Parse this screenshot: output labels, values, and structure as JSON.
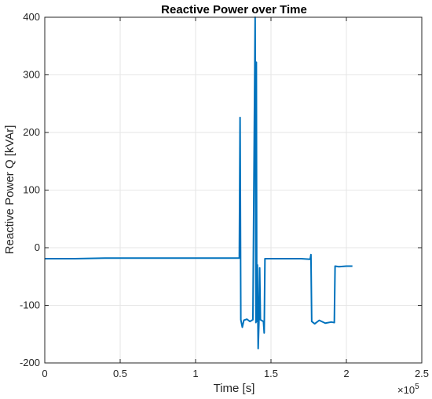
{
  "chart_data": {
    "type": "line",
    "title": "Reactive Power over Time",
    "xlabel": "Time [s]",
    "ylabel": "Reactive Power Q [kVAr]",
    "x_tick_labels": [
      "0",
      "0.5",
      "1",
      "1.5",
      "2",
      "2.5"
    ],
    "y_tick_labels": [
      "-200",
      "-100",
      "0",
      "100",
      "200",
      "300",
      "400"
    ],
    "x_exponent": {
      "base": "×10",
      "power": "5"
    },
    "xlim": [
      0,
      250000
    ],
    "ylim": [
      -200,
      400
    ],
    "x_ticks": [
      0,
      50000,
      100000,
      150000,
      200000,
      250000
    ],
    "y_ticks": [
      -200,
      -100,
      0,
      100,
      200,
      300,
      400
    ],
    "grid": true,
    "color": "#0072BD",
    "series": [
      {
        "values": [
          [
            0,
            -19
          ],
          [
            20000,
            -19
          ],
          [
            40000,
            -18
          ],
          [
            60000,
            -18
          ],
          [
            80000,
            -18
          ],
          [
            100000,
            -18
          ],
          [
            115000,
            -18
          ],
          [
            129000,
            -18
          ],
          [
            129500,
            226
          ],
          [
            130000,
            -125
          ],
          [
            131000,
            -138
          ],
          [
            132000,
            -126
          ],
          [
            134000,
            -124
          ],
          [
            136000,
            -128
          ],
          [
            138000,
            -125
          ],
          [
            139500,
            400
          ],
          [
            140000,
            -130
          ],
          [
            140300,
            322
          ],
          [
            140600,
            -128
          ],
          [
            141000,
            -30
          ],
          [
            141500,
            -175
          ],
          [
            142000,
            -130
          ],
          [
            142500,
            -35
          ],
          [
            143000,
            -125
          ],
          [
            145000,
            -128
          ],
          [
            145500,
            -148
          ],
          [
            146000,
            -19
          ],
          [
            150000,
            -19
          ],
          [
            160000,
            -19
          ],
          [
            170000,
            -19
          ],
          [
            176000,
            -20
          ],
          [
            176500,
            -12
          ],
          [
            177000,
            -128
          ],
          [
            179000,
            -132
          ],
          [
            182000,
            -126
          ],
          [
            186000,
            -131
          ],
          [
            190000,
            -129
          ],
          [
            192000,
            -130
          ],
          [
            192500,
            -32
          ],
          [
            195000,
            -33
          ],
          [
            200000,
            -32
          ],
          [
            204000,
            -32
          ]
        ]
      }
    ]
  }
}
